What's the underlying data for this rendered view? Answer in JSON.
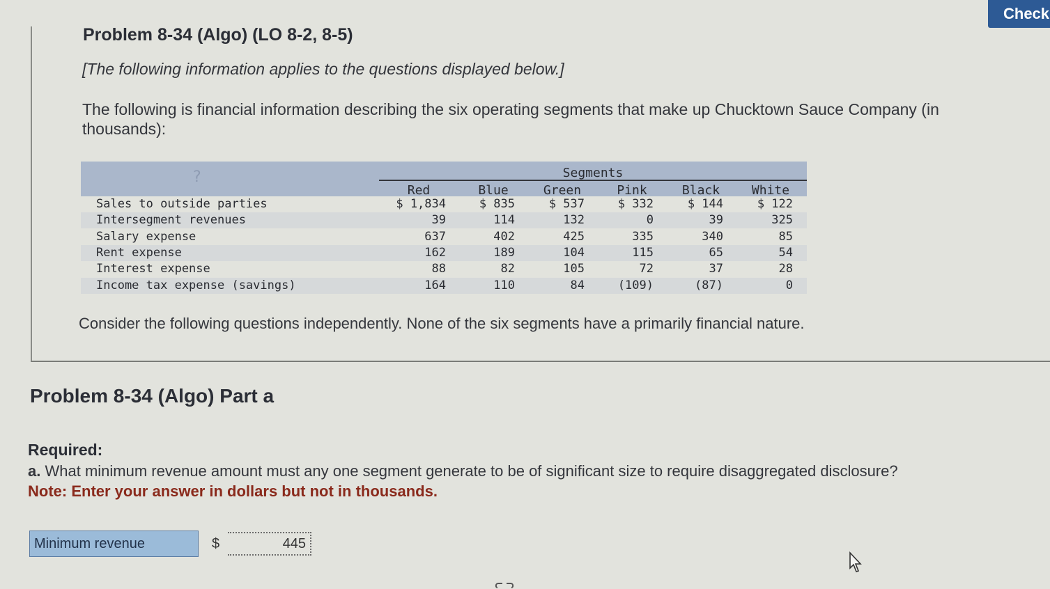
{
  "header": {
    "check_label": "Check"
  },
  "problem": {
    "title": "Problem 8-34 (Algo) (LO 8-2, 8-5)",
    "applies_note": "[The following information applies to the questions displayed below.]",
    "description": "The following is financial information describing the six operating segments that make up Chucktown Sauce Company (in thousands):",
    "consider": "Consider the following questions independently. None of the six segments have a primarily financial nature."
  },
  "table": {
    "group_header": "Segments",
    "columns": [
      "Red",
      "Blue",
      "Green",
      "Pink",
      "Black",
      "White"
    ],
    "rows": [
      {
        "label": "Sales to outside parties",
        "values": [
          "$ 1,834",
          "$ 835",
          "$ 537",
          "$ 332",
          "$ 144",
          "$ 122"
        ]
      },
      {
        "label": "Intersegment revenues",
        "values": [
          "39",
          "114",
          "132",
          "0",
          "39",
          "325"
        ]
      },
      {
        "label": "Salary expense",
        "values": [
          "637",
          "402",
          "425",
          "335",
          "340",
          "85"
        ]
      },
      {
        "label": "Rent expense",
        "values": [
          "162",
          "189",
          "104",
          "115",
          "65",
          "54"
        ]
      },
      {
        "label": "Interest expense",
        "values": [
          "88",
          "82",
          "105",
          "72",
          "37",
          "28"
        ]
      },
      {
        "label": "Income tax expense (savings)",
        "values": [
          "164",
          "110",
          "84",
          "(109)",
          "(87)",
          "0"
        ]
      }
    ]
  },
  "part": {
    "title": "Problem 8-34 (Algo) Part a",
    "required_label": "Required:",
    "question_letter": "a.",
    "question": "What minimum revenue amount must any one segment generate to be of significant size to require disaggregated disclosure?",
    "note": "Note: Enter your answer in dollars but not in thousands."
  },
  "answer": {
    "label": "Minimum revenue",
    "currency": "$",
    "value": "445"
  }
}
